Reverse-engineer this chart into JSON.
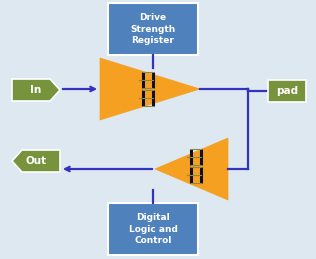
{
  "fig_width": 3.16,
  "fig_height": 2.59,
  "dpi": 100,
  "bg_color": "#dde8f0",
  "orange": "#F5A020",
  "blue_box": "#4F81BD",
  "green_box": "#77933C",
  "line_color": "#3333BB",
  "line_width": 1.6,
  "drive_strength_text": "Drive\nStrength\nRegister",
  "digital_logic_text": "Digital\nLogic and\nControl",
  "in_text": "In",
  "out_text": "Out",
  "pad_text": "pad",
  "mosfet_color": "#111111",
  "mosfet_gate_color": "#888855"
}
